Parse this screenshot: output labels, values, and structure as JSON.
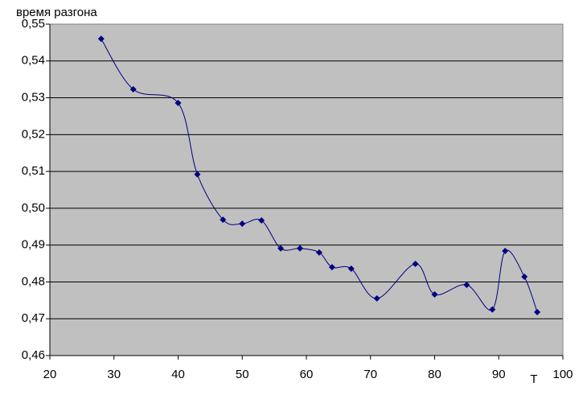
{
  "chart_data": {
    "type": "line",
    "y_label": "время разгона",
    "x_label": "T",
    "x": [
      28,
      33,
      40,
      43,
      47,
      50,
      53,
      56,
      59,
      62,
      64,
      67,
      71,
      77,
      80,
      85,
      89,
      91,
      94,
      96
    ],
    "series": [
      {
        "name": null,
        "color": "#000080",
        "values": [
          0.546,
          0.5323,
          0.5286,
          0.5092,
          0.4969,
          0.4958,
          0.4967,
          0.4891,
          0.4891,
          0.488,
          0.484,
          0.4836,
          0.4755,
          0.4849,
          0.4766,
          0.4792,
          0.4725,
          0.4884,
          0.4814,
          0.4718
        ]
      }
    ],
    "xlim": [
      20,
      100
    ],
    "xticks": [
      20,
      30,
      40,
      50,
      60,
      70,
      80,
      90,
      100
    ],
    "ylim": [
      0.46,
      0.55
    ],
    "yticks": [
      {
        "value": 0.46,
        "label": "0,46"
      },
      {
        "value": 0.47,
        "label": "0,47"
      },
      {
        "value": 0.48,
        "label": "0,48"
      },
      {
        "value": 0.49,
        "label": "0,49"
      },
      {
        "value": 0.5,
        "label": "0,50"
      },
      {
        "value": 0.51,
        "label": "0,51"
      },
      {
        "value": 0.52,
        "label": "0,52"
      },
      {
        "value": 0.53,
        "label": "0,53"
      },
      {
        "value": 0.54,
        "label": "0,54"
      },
      {
        "value": 0.55,
        "label": "0,55"
      }
    ],
    "grid": true,
    "smooth": true,
    "plot_background": "#c0c0c0"
  }
}
